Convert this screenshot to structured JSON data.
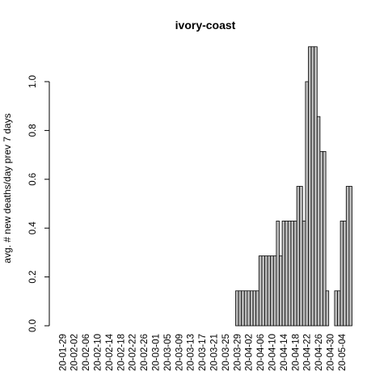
{
  "chart_data": {
    "type": "bar",
    "title": "ivory-coast",
    "xlabel": "",
    "ylabel": "avg. # new deaths/day prev  7  days",
    "ylim": [
      0,
      1.15
    ],
    "yticks": [
      "0.0",
      "0.2",
      "0.4",
      "0.6",
      "0.8",
      "1.0"
    ],
    "ytick_values": [
      0,
      0.2,
      0.4,
      0.6,
      0.8,
      1.0
    ],
    "start_date": "2020-01-29",
    "tick_labels": [
      "20-01-29",
      "20-02-02",
      "20-02-06",
      "20-02-10",
      "20-02-14",
      "20-02-18",
      "20-02-22",
      "20-02-26",
      "20-03-01",
      "20-03-05",
      "20-03-09",
      "20-03-13",
      "20-03-17",
      "20-03-21",
      "20-03-25",
      "20-03-29",
      "20-04-02",
      "20-04-06",
      "20-04-10",
      "20-04-14",
      "20-04-18",
      "20-04-22",
      "20-04-26",
      "20-04-30",
      "20-05-04"
    ],
    "values": [
      0,
      0,
      0,
      0,
      0,
      0,
      0,
      0,
      0,
      0,
      0,
      0,
      0,
      0,
      0,
      0,
      0,
      0,
      0,
      0,
      0,
      0,
      0,
      0,
      0,
      0,
      0,
      0,
      0,
      0,
      0,
      0,
      0,
      0,
      0,
      0,
      0,
      0,
      0,
      0,
      0,
      0,
      0,
      0,
      0,
      0,
      0,
      0,
      0,
      0,
      0,
      0,
      0,
      0,
      0,
      0,
      0,
      0,
      0,
      0,
      0.143,
      0.143,
      0.143,
      0.143,
      0.143,
      0.143,
      0.143,
      0.143,
      0.286,
      0.286,
      0.286,
      0.286,
      0.286,
      0.286,
      0.429,
      0.286,
      0.429,
      0.429,
      0.429,
      0.429,
      0.429,
      0.571,
      0.571,
      0.429,
      1.0,
      1.143,
      1.143,
      1.143,
      0.857,
      0.714,
      0.714,
      0.143,
      0,
      0,
      0.143,
      0.143,
      0.429,
      0.429,
      0.571,
      0.571
    ]
  }
}
